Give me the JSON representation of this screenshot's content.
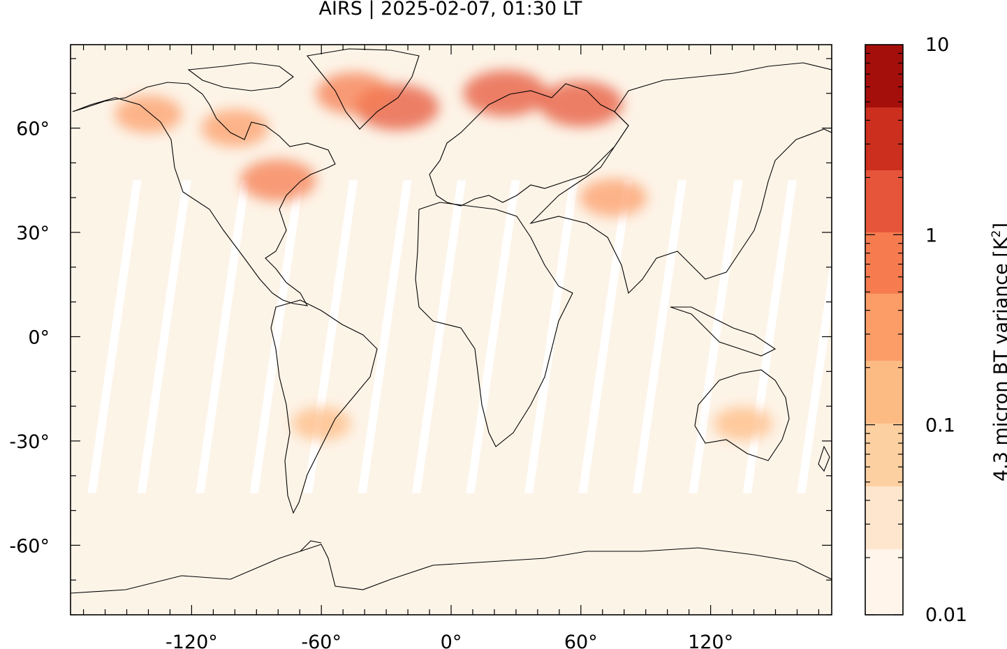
{
  "title": "AIRS | 2025-02-07, 01:30 LT",
  "map": {
    "projection": "equirectangular",
    "lon_range": [
      -180,
      180
    ],
    "lat_range": [
      -90,
      90
    ],
    "lat_ticks": [
      {
        "value": 60,
        "label": "60°"
      },
      {
        "value": 30,
        "label": "30°"
      },
      {
        "value": 0,
        "label": "0°"
      },
      {
        "value": -30,
        "label": "-30°"
      },
      {
        "value": -60,
        "label": "-60°"
      }
    ],
    "lon_ticks": [
      {
        "value": -120,
        "label": "-120°"
      },
      {
        "value": -60,
        "label": "-60°"
      },
      {
        "value": 0,
        "label": "0°"
      },
      {
        "value": 60,
        "label": "60°"
      },
      {
        "value": 120,
        "label": "120°"
      }
    ],
    "hotspots": [
      {
        "region": "greenland-iceland-atlantic",
        "lon": -25,
        "lat": 66,
        "level": 5
      },
      {
        "region": "greenland-west",
        "lon": -45,
        "lat": 70,
        "level": 4
      },
      {
        "region": "scandinavia",
        "lon": 25,
        "lat": 70,
        "level": 5
      },
      {
        "region": "ural-arctic",
        "lon": 60,
        "lat": 67,
        "level": 5
      },
      {
        "region": "alaska",
        "lon": -140,
        "lat": 64,
        "level": 3
      },
      {
        "region": "canada",
        "lon": -100,
        "lat": 60,
        "level": 3
      },
      {
        "region": "great-lakes",
        "lon": -80,
        "lat": 45,
        "level": 4
      },
      {
        "region": "central-asia",
        "lon": 75,
        "lat": 40,
        "level": 3
      },
      {
        "region": "south-america",
        "lon": -60,
        "lat": -25,
        "level": 2
      },
      {
        "region": "australia",
        "lon": 135,
        "lat": -25,
        "level": 2
      }
    ]
  },
  "colorbar": {
    "label_prefix": "4.3 micron BT variance [K",
    "label_sup": "2",
    "label_suffix": "]",
    "scale": "log",
    "range": [
      0.01,
      10
    ],
    "ticks": [
      {
        "value": 10,
        "label": "10"
      },
      {
        "value": 1,
        "label": "1"
      },
      {
        "value": 0.1,
        "label": "0.1"
      },
      {
        "value": 0.01,
        "label": "0.01"
      }
    ],
    "colors": [
      "#fff5eb",
      "#fee6ce",
      "#fdd0a2",
      "#fdbb84",
      "#fc9d68",
      "#f67c50",
      "#e6553a",
      "#cc2f1e",
      "#a50f0b"
    ]
  }
}
